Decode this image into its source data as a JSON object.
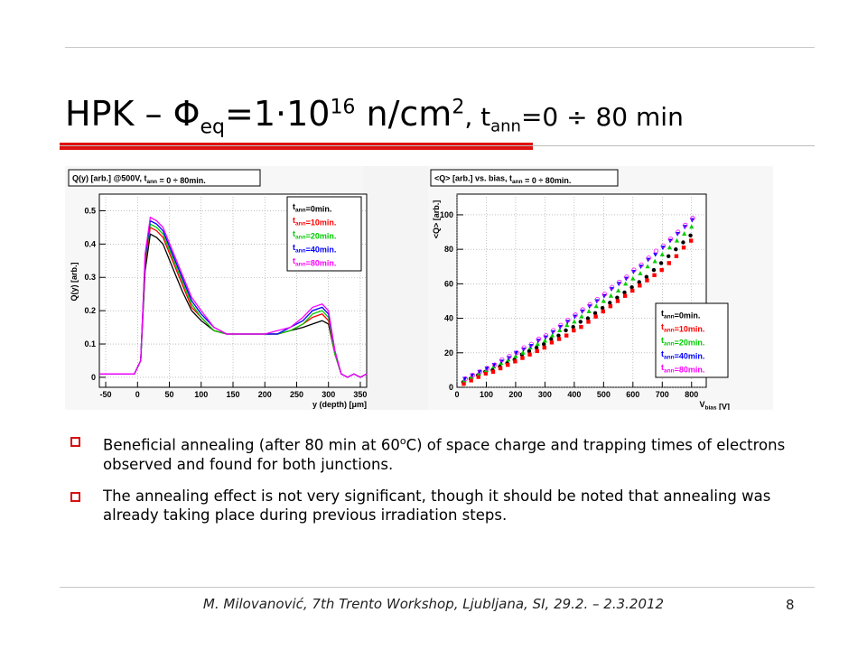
{
  "slide": {
    "title_main": "HPK – Φ",
    "title_sub_eq": "eq",
    "title_mid": "=1·10",
    "title_sup": "16",
    "title_unit": " n/cm",
    "title_sup2": "2",
    "title_comma": ", t",
    "title_sub_ann": "ann",
    "title_range": "=0 ÷ 80 min",
    "bullets": [
      {
        "pre": "Beneficial annealing (after 80 min at 60",
        "sup": "o",
        "post": "C) of space charge and trapping times of electrons observed and found for both junctions."
      },
      {
        "pre": "The annealing effect is not very significant, though it should be noted that annealing was already taking place during previous irradiation steps.",
        "sup": "",
        "post": ""
      }
    ],
    "footer": "M. Milovanović, 7th Trento Workshop, Ljubljana, SI, 29.2. – 2.3.2012",
    "page_number": "8"
  },
  "chart_data": [
    {
      "type": "line",
      "title": "Q(y) [arb.] @500V, t_ann = 0 ÷ 80min.",
      "xlabel": "y (depth) [μm]",
      "ylabel": "Q(y) [arb.]",
      "xlim": [
        -60,
        360
      ],
      "ylim": [
        -0.03,
        0.55
      ],
      "xticks": [
        -50,
        0,
        50,
        100,
        150,
        200,
        250,
        300,
        350
      ],
      "yticks": [
        0,
        0.1,
        0.2,
        0.3,
        0.4,
        0.5
      ],
      "legend": "top-right",
      "x": [
        -60,
        -40,
        -20,
        -5,
        5,
        12,
        20,
        30,
        40,
        55,
        70,
        85,
        100,
        120,
        140,
        160,
        180,
        200,
        220,
        240,
        260,
        275,
        290,
        300,
        310,
        320,
        330,
        340,
        350,
        360
      ],
      "series": [
        {
          "name": "t_ann=0min.",
          "color": "#000000",
          "values": [
            0.01,
            0.01,
            0.01,
            0.01,
            0.05,
            0.32,
            0.43,
            0.42,
            0.4,
            0.33,
            0.26,
            0.2,
            0.17,
            0.14,
            0.13,
            0.13,
            0.13,
            0.13,
            0.13,
            0.14,
            0.15,
            0.16,
            0.17,
            0.16,
            0.07,
            0.01,
            0.0,
            0.01,
            0.0,
            0.01
          ]
        },
        {
          "name": "t_ann=10min.",
          "color": "#ff0000",
          "values": [
            0.01,
            0.01,
            0.01,
            0.01,
            0.05,
            0.34,
            0.45,
            0.44,
            0.42,
            0.35,
            0.28,
            0.21,
            0.18,
            0.14,
            0.13,
            0.13,
            0.13,
            0.13,
            0.13,
            0.14,
            0.16,
            0.18,
            0.19,
            0.17,
            0.07,
            0.01,
            0.0,
            0.01,
            0.0,
            0.01
          ]
        },
        {
          "name": "t_ann=20min.",
          "color": "#00cc00",
          "values": [
            0.01,
            0.01,
            0.01,
            0.01,
            0.05,
            0.35,
            0.46,
            0.45,
            0.43,
            0.36,
            0.29,
            0.22,
            0.18,
            0.14,
            0.13,
            0.13,
            0.13,
            0.13,
            0.13,
            0.14,
            0.16,
            0.19,
            0.2,
            0.18,
            0.07,
            0.01,
            0.0,
            0.01,
            0.0,
            0.01
          ]
        },
        {
          "name": "t_ann=40min.",
          "color": "#0000ff",
          "values": [
            0.01,
            0.01,
            0.01,
            0.01,
            0.05,
            0.36,
            0.47,
            0.46,
            0.44,
            0.37,
            0.3,
            0.23,
            0.19,
            0.15,
            0.13,
            0.13,
            0.13,
            0.13,
            0.13,
            0.15,
            0.17,
            0.2,
            0.21,
            0.19,
            0.08,
            0.01,
            0.0,
            0.01,
            0.0,
            0.01
          ]
        },
        {
          "name": "t_ann=80min.",
          "color": "#ff00ff",
          "values": [
            0.01,
            0.01,
            0.01,
            0.01,
            0.05,
            0.37,
            0.48,
            0.47,
            0.45,
            0.38,
            0.31,
            0.24,
            0.2,
            0.15,
            0.13,
            0.13,
            0.13,
            0.13,
            0.14,
            0.15,
            0.18,
            0.21,
            0.22,
            0.2,
            0.08,
            0.01,
            0.0,
            0.01,
            0.0,
            0.01
          ]
        }
      ]
    },
    {
      "type": "scatter",
      "title": "<Q> [arb.] vs. bias, t_ann = 0 ÷ 80min.",
      "xlabel": "V_bias [V]",
      "ylabel": "<Q> [arb.]",
      "xlim": [
        0,
        850
      ],
      "ylim": [
        0,
        112
      ],
      "xticks": [
        0,
        100,
        200,
        300,
        400,
        500,
        600,
        700,
        800
      ],
      "yticks": [
        0,
        20,
        40,
        60,
        80,
        100
      ],
      "legend": "bottom-right",
      "x": [
        25,
        50,
        75,
        100,
        125,
        150,
        175,
        200,
        225,
        250,
        275,
        300,
        325,
        350,
        375,
        400,
        425,
        450,
        475,
        500,
        525,
        550,
        575,
        600,
        625,
        650,
        675,
        700,
        725,
        750,
        775,
        800
      ],
      "series": [
        {
          "name": "t_ann=0min.",
          "color": "#000000",
          "values": [
            3,
            5,
            7,
            9,
            10,
            12,
            14,
            16,
            19,
            21,
            23,
            25,
            28,
            30,
            33,
            35,
            38,
            40,
            43,
            46,
            49,
            52,
            55,
            58,
            61,
            64,
            68,
            72,
            76,
            80,
            84,
            88
          ]
        },
        {
          "name": "t_ann=10min.",
          "color": "#ff0000",
          "values": [
            2,
            4,
            6,
            8,
            9,
            11,
            13,
            15,
            17,
            19,
            21,
            23,
            26,
            28,
            30,
            33,
            35,
            38,
            41,
            44,
            47,
            50,
            53,
            56,
            59,
            62,
            65,
            68,
            72,
            76,
            81,
            85
          ]
        },
        {
          "name": "t_ann=20min.",
          "color": "#00cc00",
          "values": [
            4,
            6,
            8,
            10,
            12,
            14,
            16,
            18,
            20,
            23,
            25,
            27,
            30,
            33,
            36,
            38,
            41,
            44,
            47,
            50,
            53,
            56,
            60,
            63,
            66,
            70,
            73,
            77,
            81,
            85,
            89,
            93
          ]
        },
        {
          "name": "t_ann=40min.",
          "color": "#0000ff",
          "values": [
            5,
            7,
            9,
            11,
            13,
            15,
            17,
            20,
            22,
            24,
            27,
            29,
            32,
            35,
            38,
            41,
            44,
            47,
            50,
            53,
            57,
            60,
            63,
            67,
            70,
            74,
            77,
            81,
            85,
            89,
            93,
            97
          ]
        },
        {
          "name": "t_ann=80min.",
          "color": "#ff00ff",
          "values": [
            5,
            7,
            9,
            11,
            13,
            16,
            18,
            20,
            23,
            25,
            28,
            30,
            33,
            36,
            39,
            42,
            45,
            48,
            51,
            54,
            58,
            61,
            64,
            68,
            71,
            75,
            79,
            82,
            86,
            90,
            94,
            98
          ]
        }
      ]
    }
  ]
}
